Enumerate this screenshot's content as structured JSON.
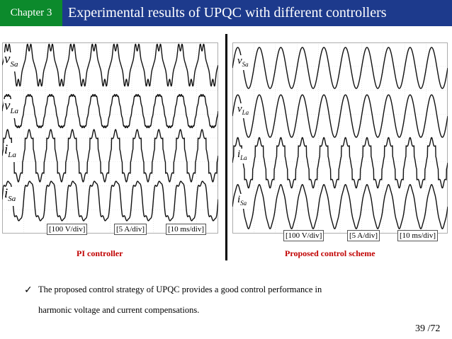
{
  "header": {
    "chapter": "Chapter 3",
    "title": "Experimental results of UPQC with different controllers",
    "chapter_color": "#0c8a2c",
    "title_bar_color": "#1d3a8c"
  },
  "left_panel": {
    "caption": "PI controller",
    "signals": [
      {
        "symbol": "v",
        "sub": "Sa"
      },
      {
        "symbol": "v",
        "sub": "La"
      },
      {
        "symbol": "i",
        "sub": "La"
      },
      {
        "symbol": "i",
        "sub": "Sa"
      }
    ],
    "scales": [
      "[100 V/div]",
      "[5 A/div]",
      "[10 ms/div]"
    ]
  },
  "right_panel": {
    "caption": "Proposed control scheme",
    "signals": [
      {
        "symbol": "v",
        "sub": "Sa"
      },
      {
        "symbol": "v",
        "sub": "La"
      },
      {
        "symbol": "i",
        "sub": "La"
      },
      {
        "symbol": "i",
        "sub": "Sa"
      }
    ],
    "scales": [
      "[100 V/div]",
      "[5 A/div]",
      "[10 ms/div]"
    ]
  },
  "bullet": {
    "icon": "check-mark-icon",
    "line1": "The proposed control strategy of UPQC provides a good control performance in",
    "line2": "harmonic voltage and current compensations."
  },
  "page_number": "39 /72",
  "caption_color": "#c00000"
}
